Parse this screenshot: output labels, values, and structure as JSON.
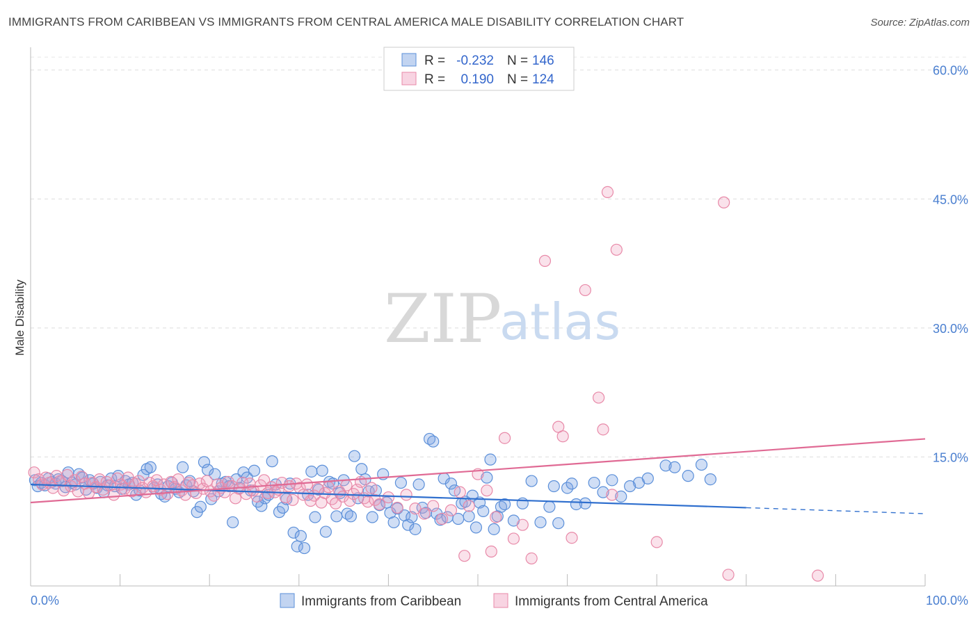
{
  "title": "IMMIGRANTS FROM CARIBBEAN VS IMMIGRANTS FROM CENTRAL AMERICA MALE DISABILITY CORRELATION CHART",
  "source": "Source: ZipAtlas.com",
  "watermark": {
    "zip": "ZIP",
    "atlas": "atlas"
  },
  "colors": {
    "blue": "#5b8fd9",
    "blue_fill": "rgba(120,160,225,0.35)",
    "blue_line": "#2f6fce",
    "pink": "#e889a8",
    "pink_fill": "rgba(240,160,190,0.30)",
    "pink_line": "#e06a94",
    "tick": "#4a7fd0",
    "grid": "#dddddd"
  },
  "legend": {
    "rows": [
      {
        "r_label": "R =",
        "r_value": "-0.232",
        "n_label": "N =",
        "n_value": "146"
      },
      {
        "r_label": "R =",
        "r_value": "0.190",
        "n_label": "N =",
        "n_value": "124"
      }
    ]
  },
  "chart_data": {
    "type": "scatter",
    "xlabel": "",
    "ylabel": "Male Disability",
    "xlim": [
      0,
      100
    ],
    "ylim": [
      0,
      62
    ],
    "x_tick_labels": [
      "0.0%",
      "100.0%"
    ],
    "y_ticks": [
      15,
      30,
      45,
      60
    ],
    "y_tick_labels": [
      "15.0%",
      "30.0%",
      "45.0%",
      "60.0%"
    ],
    "grid": true,
    "legend_position": "top-center",
    "series": [
      {
        "name": "Immigrants from Caribbean",
        "color": "#5b8fd9",
        "trend": {
          "x": [
            0,
            80,
            100
          ],
          "y": [
            11.8,
            9.1,
            8.4
          ],
          "dashed_from": 80
        },
        "points": [
          [
            0.5,
            12.3
          ],
          [
            0.8,
            11.6
          ],
          [
            1.2,
            12.0
          ],
          [
            1.6,
            11.7
          ],
          [
            2.0,
            12.5
          ],
          [
            2.4,
            12.1
          ],
          [
            2.8,
            11.9
          ],
          [
            3.1,
            12.4
          ],
          [
            3.5,
            12.2
          ],
          [
            3.9,
            11.5
          ],
          [
            4.2,
            13.2
          ],
          [
            4.6,
            12.0
          ],
          [
            5.0,
            11.8
          ],
          [
            5.4,
            13.0
          ],
          [
            5.8,
            12.6
          ],
          [
            6.2,
            11.2
          ],
          [
            6.6,
            12.3
          ],
          [
            7.0,
            11.9
          ],
          [
            7.4,
            11.4
          ],
          [
            7.8,
            12.1
          ],
          [
            8.2,
            10.9
          ],
          [
            8.6,
            11.7
          ],
          [
            9.0,
            12.5
          ],
          [
            9.4,
            11.6
          ],
          [
            9.8,
            12.8
          ],
          [
            10.2,
            11.3
          ],
          [
            10.6,
            12.2
          ],
          [
            11.0,
            11.8
          ],
          [
            11.4,
            12.0
          ],
          [
            11.8,
            10.6
          ],
          [
            12.2,
            11.1
          ],
          [
            12.6,
            12.9
          ],
          [
            13.0,
            13.6
          ],
          [
            13.4,
            13.8
          ],
          [
            13.8,
            11.4
          ],
          [
            14.2,
            11.8
          ],
          [
            14.6,
            10.7
          ],
          [
            15.0,
            10.4
          ],
          [
            15.4,
            11.6
          ],
          [
            15.8,
            12.0
          ],
          [
            16.2,
            11.3
          ],
          [
            16.6,
            10.9
          ],
          [
            17.0,
            13.8
          ],
          [
            17.4,
            11.7
          ],
          [
            17.8,
            12.2
          ],
          [
            18.2,
            11.0
          ],
          [
            18.6,
            8.6
          ],
          [
            19.0,
            9.2
          ],
          [
            19.4,
            14.4
          ],
          [
            19.8,
            13.5
          ],
          [
            20.2,
            10.1
          ],
          [
            20.6,
            13.0
          ],
          [
            21.0,
            11.0
          ],
          [
            21.4,
            11.9
          ],
          [
            21.8,
            12.1
          ],
          [
            22.2,
            11.6
          ],
          [
            22.6,
            7.4
          ],
          [
            23.0,
            12.4
          ],
          [
            23.4,
            11.4
          ],
          [
            23.8,
            13.2
          ],
          [
            24.2,
            12.6
          ],
          [
            24.6,
            11.1
          ],
          [
            25.0,
            13.4
          ],
          [
            25.4,
            9.8
          ],
          [
            25.8,
            9.3
          ],
          [
            26.2,
            10.2
          ],
          [
            26.6,
            10.6
          ],
          [
            27.0,
            14.5
          ],
          [
            27.4,
            11.8
          ],
          [
            27.8,
            8.6
          ],
          [
            28.2,
            9.1
          ],
          [
            28.6,
            10.1
          ],
          [
            29.0,
            11.9
          ],
          [
            29.4,
            6.2
          ],
          [
            29.8,
            4.6
          ],
          [
            30.2,
            5.8
          ],
          [
            30.6,
            4.4
          ],
          [
            31.0,
            10.6
          ],
          [
            31.4,
            13.3
          ],
          [
            31.8,
            8.0
          ],
          [
            32.2,
            11.2
          ],
          [
            32.6,
            13.4
          ],
          [
            33.0,
            6.3
          ],
          [
            33.4,
            12.1
          ],
          [
            33.8,
            11.9
          ],
          [
            34.2,
            8.1
          ],
          [
            34.6,
            10.8
          ],
          [
            35.0,
            12.3
          ],
          [
            35.4,
            8.4
          ],
          [
            35.8,
            8.1
          ],
          [
            36.2,
            15.1
          ],
          [
            36.6,
            10.2
          ],
          [
            37.0,
            13.6
          ],
          [
            37.4,
            12.4
          ],
          [
            37.8,
            11.0
          ],
          [
            38.2,
            8.0
          ],
          [
            38.6,
            11.1
          ],
          [
            39.0,
            9.4
          ],
          [
            39.4,
            13.0
          ],
          [
            39.8,
            9.7
          ],
          [
            40.2,
            8.5
          ],
          [
            40.6,
            7.4
          ],
          [
            41.0,
            9.0
          ],
          [
            41.4,
            12.0
          ],
          [
            41.8,
            8.2
          ],
          [
            42.2,
            7.1
          ],
          [
            42.6,
            8.0
          ],
          [
            43.0,
            6.6
          ],
          [
            43.4,
            11.8
          ],
          [
            43.8,
            9.1
          ],
          [
            44.2,
            8.5
          ],
          [
            44.6,
            17.1
          ],
          [
            45.0,
            16.8
          ],
          [
            45.4,
            8.4
          ],
          [
            45.8,
            7.7
          ],
          [
            46.2,
            12.5
          ],
          [
            46.6,
            8.0
          ],
          [
            47.0,
            11.9
          ],
          [
            47.4,
            11.1
          ],
          [
            47.8,
            7.8
          ],
          [
            48.2,
            9.6
          ],
          [
            48.6,
            9.8
          ],
          [
            49.0,
            8.1
          ],
          [
            49.4,
            10.5
          ],
          [
            49.8,
            6.8
          ],
          [
            50.2,
            9.7
          ],
          [
            50.6,
            8.7
          ],
          [
            51.0,
            12.6
          ],
          [
            51.4,
            14.7
          ],
          [
            51.8,
            6.6
          ],
          [
            52.2,
            8.1
          ],
          [
            52.6,
            9.2
          ],
          [
            53.0,
            9.5
          ],
          [
            54.0,
            7.6
          ],
          [
            55.0,
            9.6
          ],
          [
            56.0,
            12.2
          ],
          [
            57.0,
            7.4
          ],
          [
            58.0,
            9.2
          ],
          [
            58.5,
            11.6
          ],
          [
            59.0,
            7.3
          ],
          [
            60.0,
            11.4
          ],
          [
            62.0,
            9.6
          ],
          [
            63.0,
            12.0
          ],
          [
            65.0,
            12.3
          ],
          [
            68.0,
            12.0
          ],
          [
            71.0,
            14.0
          ],
          [
            72.0,
            13.8
          ],
          [
            73.5,
            12.8
          ],
          [
            75.0,
            14.1
          ],
          [
            76.0,
            12.4
          ],
          [
            60.5,
            11.9
          ],
          [
            61.0,
            9.5
          ],
          [
            64.0,
            10.9
          ],
          [
            66.0,
            10.4
          ],
          [
            67.0,
            11.6
          ],
          [
            69.0,
            12.5
          ]
        ]
      },
      {
        "name": "Immigrants from Central America",
        "color": "#e889a8",
        "trend": {
          "x": [
            0,
            100
          ],
          "y": [
            9.7,
            17.1
          ]
        },
        "points": [
          [
            0.4,
            13.2
          ],
          [
            0.9,
            12.4
          ],
          [
            1.3,
            11.8
          ],
          [
            1.7,
            12.6
          ],
          [
            2.1,
            12.0
          ],
          [
            2.5,
            11.4
          ],
          [
            2.9,
            12.8
          ],
          [
            3.3,
            12.2
          ],
          [
            3.7,
            11.1
          ],
          [
            4.1,
            12.9
          ],
          [
            4.5,
            11.6
          ],
          [
            4.9,
            12.3
          ],
          [
            5.3,
            11.0
          ],
          [
            5.7,
            12.7
          ],
          [
            6.1,
            11.9
          ],
          [
            6.5,
            10.8
          ],
          [
            6.9,
            12.0
          ],
          [
            7.3,
            11.5
          ],
          [
            7.7,
            12.4
          ],
          [
            8.1,
            11.2
          ],
          [
            8.5,
            12.1
          ],
          [
            8.9,
            11.7
          ],
          [
            9.3,
            10.6
          ],
          [
            9.7,
            12.5
          ],
          [
            10.1,
            11.8
          ],
          [
            10.5,
            11.3
          ],
          [
            10.9,
            12.6
          ],
          [
            11.3,
            11.0
          ],
          [
            11.7,
            11.9
          ],
          [
            12.1,
            12.2
          ],
          [
            12.5,
            11.4
          ],
          [
            12.9,
            10.9
          ],
          [
            13.3,
            12.0
          ],
          [
            13.7,
            11.6
          ],
          [
            14.1,
            12.3
          ],
          [
            14.5,
            11.2
          ],
          [
            14.9,
            11.8
          ],
          [
            15.3,
            10.7
          ],
          [
            15.7,
            12.1
          ],
          [
            16.1,
            11.5
          ],
          [
            16.5,
            12.4
          ],
          [
            16.9,
            11.1
          ],
          [
            17.3,
            10.6
          ],
          [
            17.7,
            12.0
          ],
          [
            18.1,
            11.7
          ],
          [
            18.5,
            10.8
          ],
          [
            18.9,
            11.9
          ],
          [
            19.3,
            11.3
          ],
          [
            19.7,
            12.2
          ],
          [
            20.1,
            11.0
          ],
          [
            20.5,
            10.5
          ],
          [
            20.9,
            11.8
          ],
          [
            21.3,
            11.4
          ],
          [
            21.7,
            10.9
          ],
          [
            22.1,
            12.1
          ],
          [
            22.5,
            11.6
          ],
          [
            22.9,
            10.2
          ],
          [
            23.3,
            11.3
          ],
          [
            23.7,
            12.0
          ],
          [
            24.1,
            10.7
          ],
          [
            24.5,
            11.9
          ],
          [
            24.9,
            11.1
          ],
          [
            25.3,
            10.4
          ],
          [
            25.7,
            11.7
          ],
          [
            26.1,
            12.3
          ],
          [
            26.5,
            10.8
          ],
          [
            26.9,
            11.5
          ],
          [
            27.3,
            10.9
          ],
          [
            27.7,
            11.2
          ],
          [
            28.1,
            12.0
          ],
          [
            28.5,
            10.3
          ],
          [
            28.9,
            11.6
          ],
          [
            29.3,
            10.0
          ],
          [
            29.7,
            11.9
          ],
          [
            30.1,
            11.4
          ],
          [
            30.5,
            10.6
          ],
          [
            30.9,
            11.8
          ],
          [
            31.3,
            9.9
          ],
          [
            31.7,
            10.5
          ],
          [
            32.1,
            11.3
          ],
          [
            32.5,
            9.7
          ],
          [
            32.9,
            10.8
          ],
          [
            33.3,
            11.5
          ],
          [
            33.7,
            10.1
          ],
          [
            34.1,
            9.6
          ],
          [
            34.5,
            11.0
          ],
          [
            34.9,
            10.4
          ],
          [
            35.3,
            11.7
          ],
          [
            35.7,
            9.9
          ],
          [
            36.1,
            10.7
          ],
          [
            36.5,
            11.2
          ],
          [
            36.9,
            12.1
          ],
          [
            37.3,
            10.2
          ],
          [
            37.7,
            9.8
          ],
          [
            38.1,
            11.4
          ],
          [
            38.5,
            10.0
          ],
          [
            39.0,
            9.5
          ],
          [
            40.0,
            10.3
          ],
          [
            41.0,
            9.1
          ],
          [
            42.0,
            10.6
          ],
          [
            43.0,
            9.0
          ],
          [
            44.0,
            8.4
          ],
          [
            45.0,
            9.3
          ],
          [
            46.0,
            7.8
          ],
          [
            47.0,
            8.8
          ],
          [
            48.0,
            10.9
          ],
          [
            49.0,
            9.3
          ],
          [
            50.0,
            13.0
          ],
          [
            51.0,
            11.1
          ],
          [
            52.0,
            8.0
          ],
          [
            53.0,
            17.2
          ],
          [
            54.0,
            5.5
          ],
          [
            55.0,
            7.1
          ],
          [
            56.0,
            3.2
          ],
          [
            57.5,
            37.8
          ],
          [
            59.0,
            18.5
          ],
          [
            59.5,
            17.4
          ],
          [
            60.5,
            5.6
          ],
          [
            62.0,
            34.4
          ],
          [
            63.5,
            21.9
          ],
          [
            64.0,
            18.2
          ],
          [
            64.5,
            45.8
          ],
          [
            65.0,
            10.6
          ],
          [
            65.5,
            39.1
          ],
          [
            70.0,
            5.1
          ],
          [
            77.5,
            44.6
          ],
          [
            78.0,
            1.3
          ],
          [
            88.0,
            1.2
          ],
          [
            48.5,
            3.5
          ],
          [
            51.5,
            4.0
          ]
        ]
      }
    ]
  },
  "bottom_legend": [
    {
      "label": "Immigrants from Caribbean",
      "color": "#5b8fd9"
    },
    {
      "label": "Immigrants from Central America",
      "color": "#e889a8"
    }
  ]
}
